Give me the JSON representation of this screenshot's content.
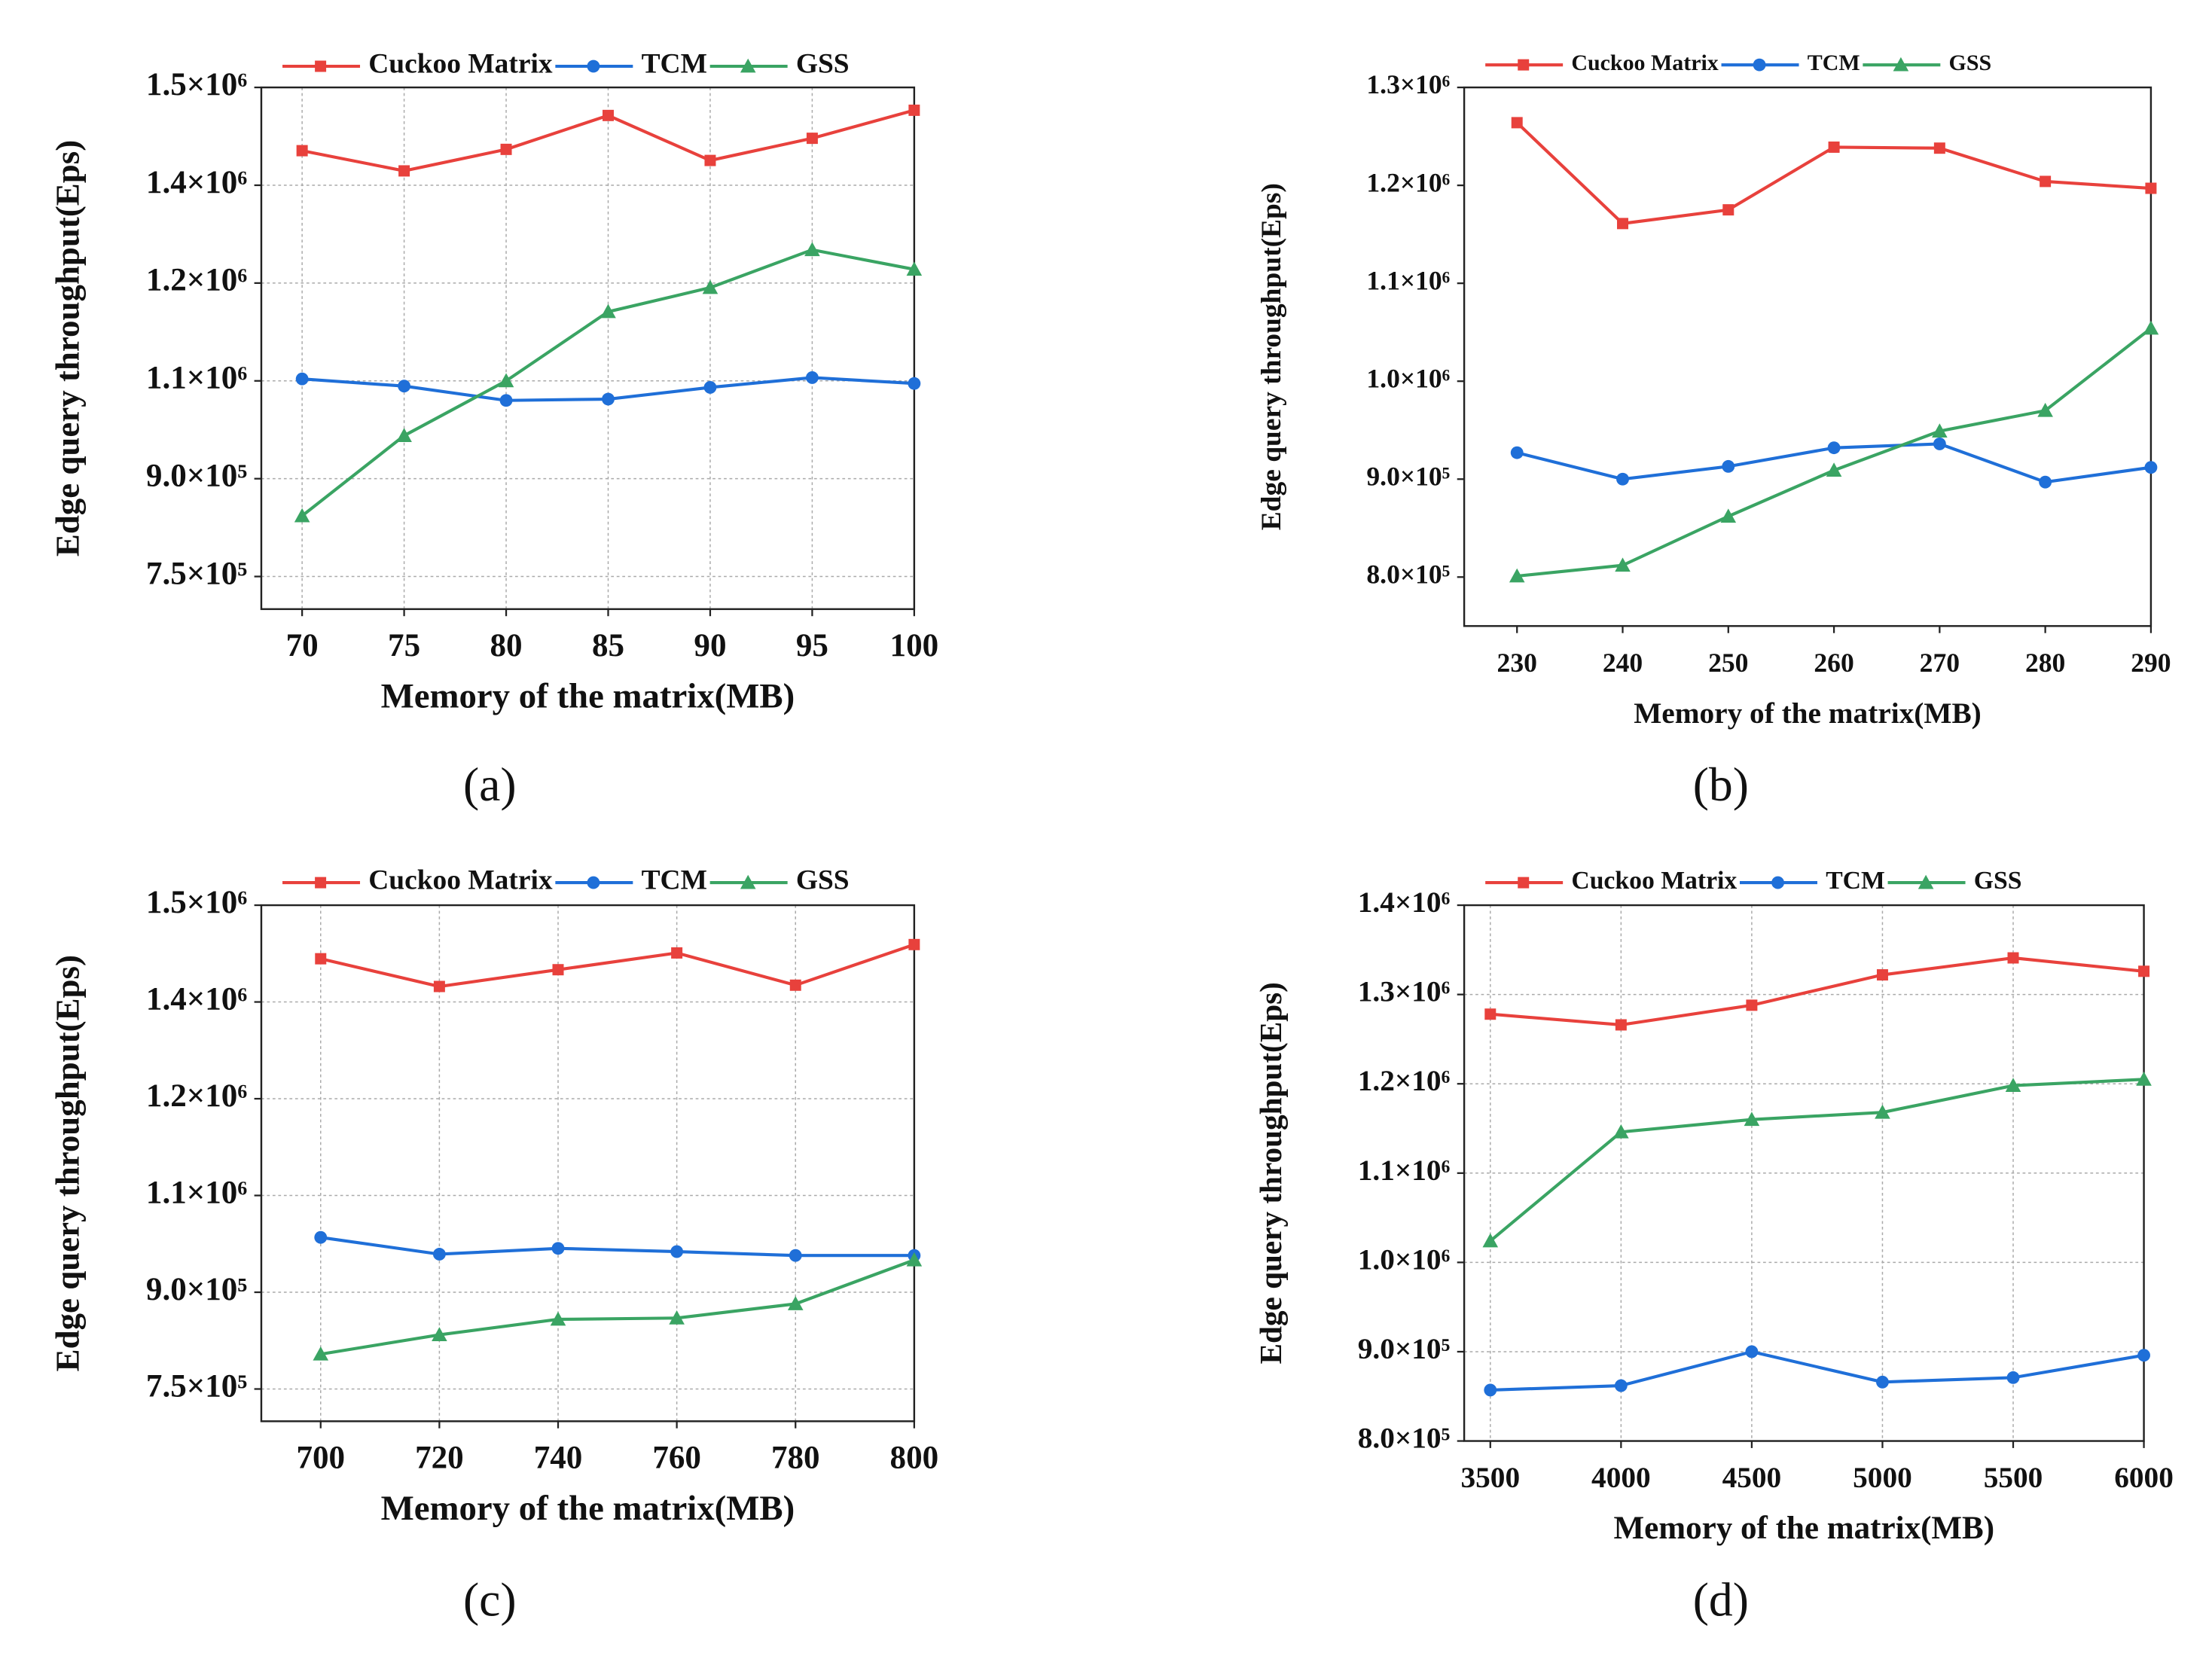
{
  "chart_data": [
    {
      "type": "line",
      "panel_label": "(a)",
      "x_label": "Memory of the matrix(MB)",
      "y_label": "Edge query throughput(Eps)",
      "x": [
        70,
        75,
        80,
        85,
        90,
        95,
        100
      ],
      "xlim": [
        68,
        100
      ],
      "xticks": [
        70,
        75,
        80,
        85,
        90,
        95,
        100
      ],
      "ylim": [
        700000,
        1500000
      ],
      "yticks": [
        {
          "value": 750000,
          "label": "7.5×10⁵"
        },
        {
          "value": 900000,
          "label": "9.0×10⁵"
        },
        {
          "value": 1050000,
          "label": "1.1×10⁶"
        },
        {
          "value": 1200000,
          "label": "1.2×10⁶"
        },
        {
          "value": 1350000,
          "label": "1.4×10⁶"
        },
        {
          "value": 1500000,
          "label": "1.5×10⁶"
        }
      ],
      "grid": true,
      "series": [
        {
          "name": "Cuckoo Matrix",
          "color": "#e8413c",
          "marker": "square",
          "values": [
            1403000,
            1372000,
            1405000,
            1457000,
            1388000,
            1422000,
            1465000
          ]
        },
        {
          "name": "TCM",
          "color": "#1f6fd8",
          "marker": "circle",
          "values": [
            1053000,
            1042000,
            1020000,
            1022000,
            1040000,
            1055000,
            1046000
          ]
        },
        {
          "name": "GSS",
          "color": "#3aa463",
          "marker": "triangle",
          "values": [
            843000,
            966000,
            1050000,
            1156000,
            1193000,
            1251000,
            1221000
          ]
        }
      ]
    },
    {
      "type": "line",
      "panel_label": "(b)",
      "x_label": "Memory of the matrix(MB)",
      "y_label": "Edge query throughput(Eps)",
      "x": [
        230,
        240,
        250,
        260,
        270,
        280,
        290
      ],
      "xlim": [
        225,
        290
      ],
      "xticks": [
        230,
        240,
        250,
        260,
        270,
        280,
        290
      ],
      "ylim": [
        750000,
        1300000
      ],
      "yticks": [
        {
          "value": 800000,
          "label": "8.0×10⁵"
        },
        {
          "value": 900000,
          "label": "9.0×10⁵"
        },
        {
          "value": 1000000,
          "label": "1.0×10⁶"
        },
        {
          "value": 1100000,
          "label": "1.1×10⁶"
        },
        {
          "value": 1200000,
          "label": "1.2×10⁶"
        },
        {
          "value": 1300000,
          "label": "1.3×10⁶"
        }
      ],
      "grid": false,
      "series": [
        {
          "name": "Cuckoo Matrix",
          "color": "#e8413c",
          "marker": "square",
          "values": [
            1264000,
            1161000,
            1175000,
            1239000,
            1238000,
            1204000,
            1197000
          ]
        },
        {
          "name": "TCM",
          "color": "#1f6fd8",
          "marker": "circle",
          "values": [
            927000,
            900000,
            913000,
            932000,
            936000,
            897000,
            912000
          ]
        },
        {
          "name": "GSS",
          "color": "#3aa463",
          "marker": "triangle",
          "values": [
            801000,
            812000,
            862000,
            909000,
            949000,
            970000,
            1054000
          ]
        }
      ]
    },
    {
      "type": "line",
      "panel_label": "(c)",
      "x_label": "Memory of the matrix(MB)",
      "y_label": "Edge query throughput(Eps)",
      "x": [
        700,
        720,
        740,
        760,
        780,
        800
      ],
      "xlim": [
        690,
        800
      ],
      "xticks": [
        700,
        720,
        740,
        760,
        780,
        800
      ],
      "ylim": [
        700000,
        1500000
      ],
      "yticks": [
        {
          "value": 750000,
          "label": "7.5×10⁵"
        },
        {
          "value": 900000,
          "label": "9.0×10⁵"
        },
        {
          "value": 1050000,
          "label": "1.1×10⁶"
        },
        {
          "value": 1200000,
          "label": "1.2×10⁶"
        },
        {
          "value": 1350000,
          "label": "1.4×10⁶"
        },
        {
          "value": 1500000,
          "label": "1.5×10⁶"
        }
      ],
      "grid": true,
      "series": [
        {
          "name": "Cuckoo Matrix",
          "color": "#e8413c",
          "marker": "square",
          "values": [
            1417000,
            1374000,
            1400000,
            1426000,
            1376000,
            1439000
          ]
        },
        {
          "name": "TCM",
          "color": "#1f6fd8",
          "marker": "circle",
          "values": [
            985000,
            959000,
            968000,
            963000,
            957000,
            957000
          ]
        },
        {
          "name": "GSS",
          "color": "#3aa463",
          "marker": "triangle",
          "values": [
            804000,
            834000,
            858000,
            860000,
            882000,
            950000
          ]
        }
      ]
    },
    {
      "type": "line",
      "panel_label": "(d)",
      "x_label": "Memory of the matrix(MB)",
      "y_label": "Edge query throughput(Eps)",
      "x": [
        3500,
        4000,
        4500,
        5000,
        5500,
        6000
      ],
      "xlim": [
        3400,
        6000
      ],
      "xticks": [
        3500,
        4000,
        4500,
        5000,
        5500,
        6000
      ],
      "ylim": [
        800000,
        1400000
      ],
      "yticks": [
        {
          "value": 800000,
          "label": "8.0×10⁵"
        },
        {
          "value": 900000,
          "label": "9.0×10⁵"
        },
        {
          "value": 1000000,
          "label": "1.0×10⁶"
        },
        {
          "value": 1100000,
          "label": "1.1×10⁶"
        },
        {
          "value": 1200000,
          "label": "1.2×10⁶"
        },
        {
          "value": 1300000,
          "label": "1.3×10⁶"
        },
        {
          "value": 1400000,
          "label": "1.4×10⁶"
        }
      ],
      "grid": true,
      "series": [
        {
          "name": "Cuckoo Matrix",
          "color": "#e8413c",
          "marker": "square",
          "values": [
            1278000,
            1266000,
            1288000,
            1322000,
            1341000,
            1326000
          ]
        },
        {
          "name": "TCM",
          "color": "#1f6fd8",
          "marker": "circle",
          "values": [
            857000,
            862000,
            900000,
            866000,
            871000,
            896000
          ]
        },
        {
          "name": "GSS",
          "color": "#3aa463",
          "marker": "triangle",
          "values": [
            1024000,
            1146000,
            1160000,
            1168000,
            1198000,
            1205000
          ]
        }
      ]
    }
  ]
}
